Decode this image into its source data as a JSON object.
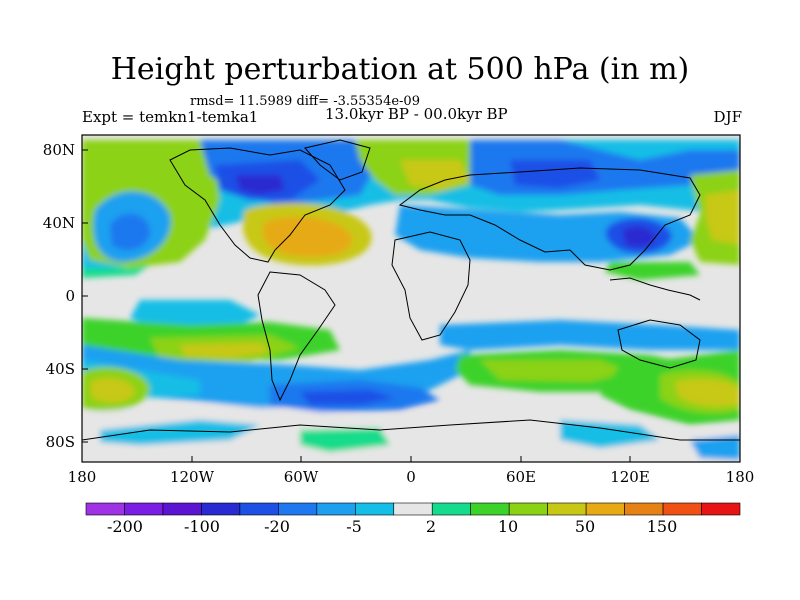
{
  "header": {
    "title": "Height perturbation at 500 hPa (in m)",
    "stats": "rmsd= 11.5989 diff= -3.55354e-09",
    "experiment": "Expt = temkn1-temka1",
    "period": "13.0kyr BP - 00.0kyr BP",
    "season": "DJF"
  },
  "axes": {
    "y_labels": [
      "80N",
      "40N",
      "0",
      "40S",
      "80S"
    ],
    "x_labels": [
      "180",
      "120W",
      "60W",
      "0",
      "60E",
      "120E",
      "180"
    ]
  },
  "colorbar": {
    "colors": [
      "#a032e6",
      "#7a1ee6",
      "#5a14d2",
      "#2a2ad2",
      "#1e50e6",
      "#1e78ef",
      "#1ea0f0",
      "#14bee6",
      "#e6e6e6",
      "#14dc8c",
      "#3cd22a",
      "#8cd214",
      "#c8c814",
      "#e6aa14",
      "#e68214",
      "#f05014",
      "#e61414"
    ],
    "labels": [
      "-200",
      "-100",
      "-20",
      "-5",
      "2",
      "10",
      "50",
      "150"
    ]
  }
}
